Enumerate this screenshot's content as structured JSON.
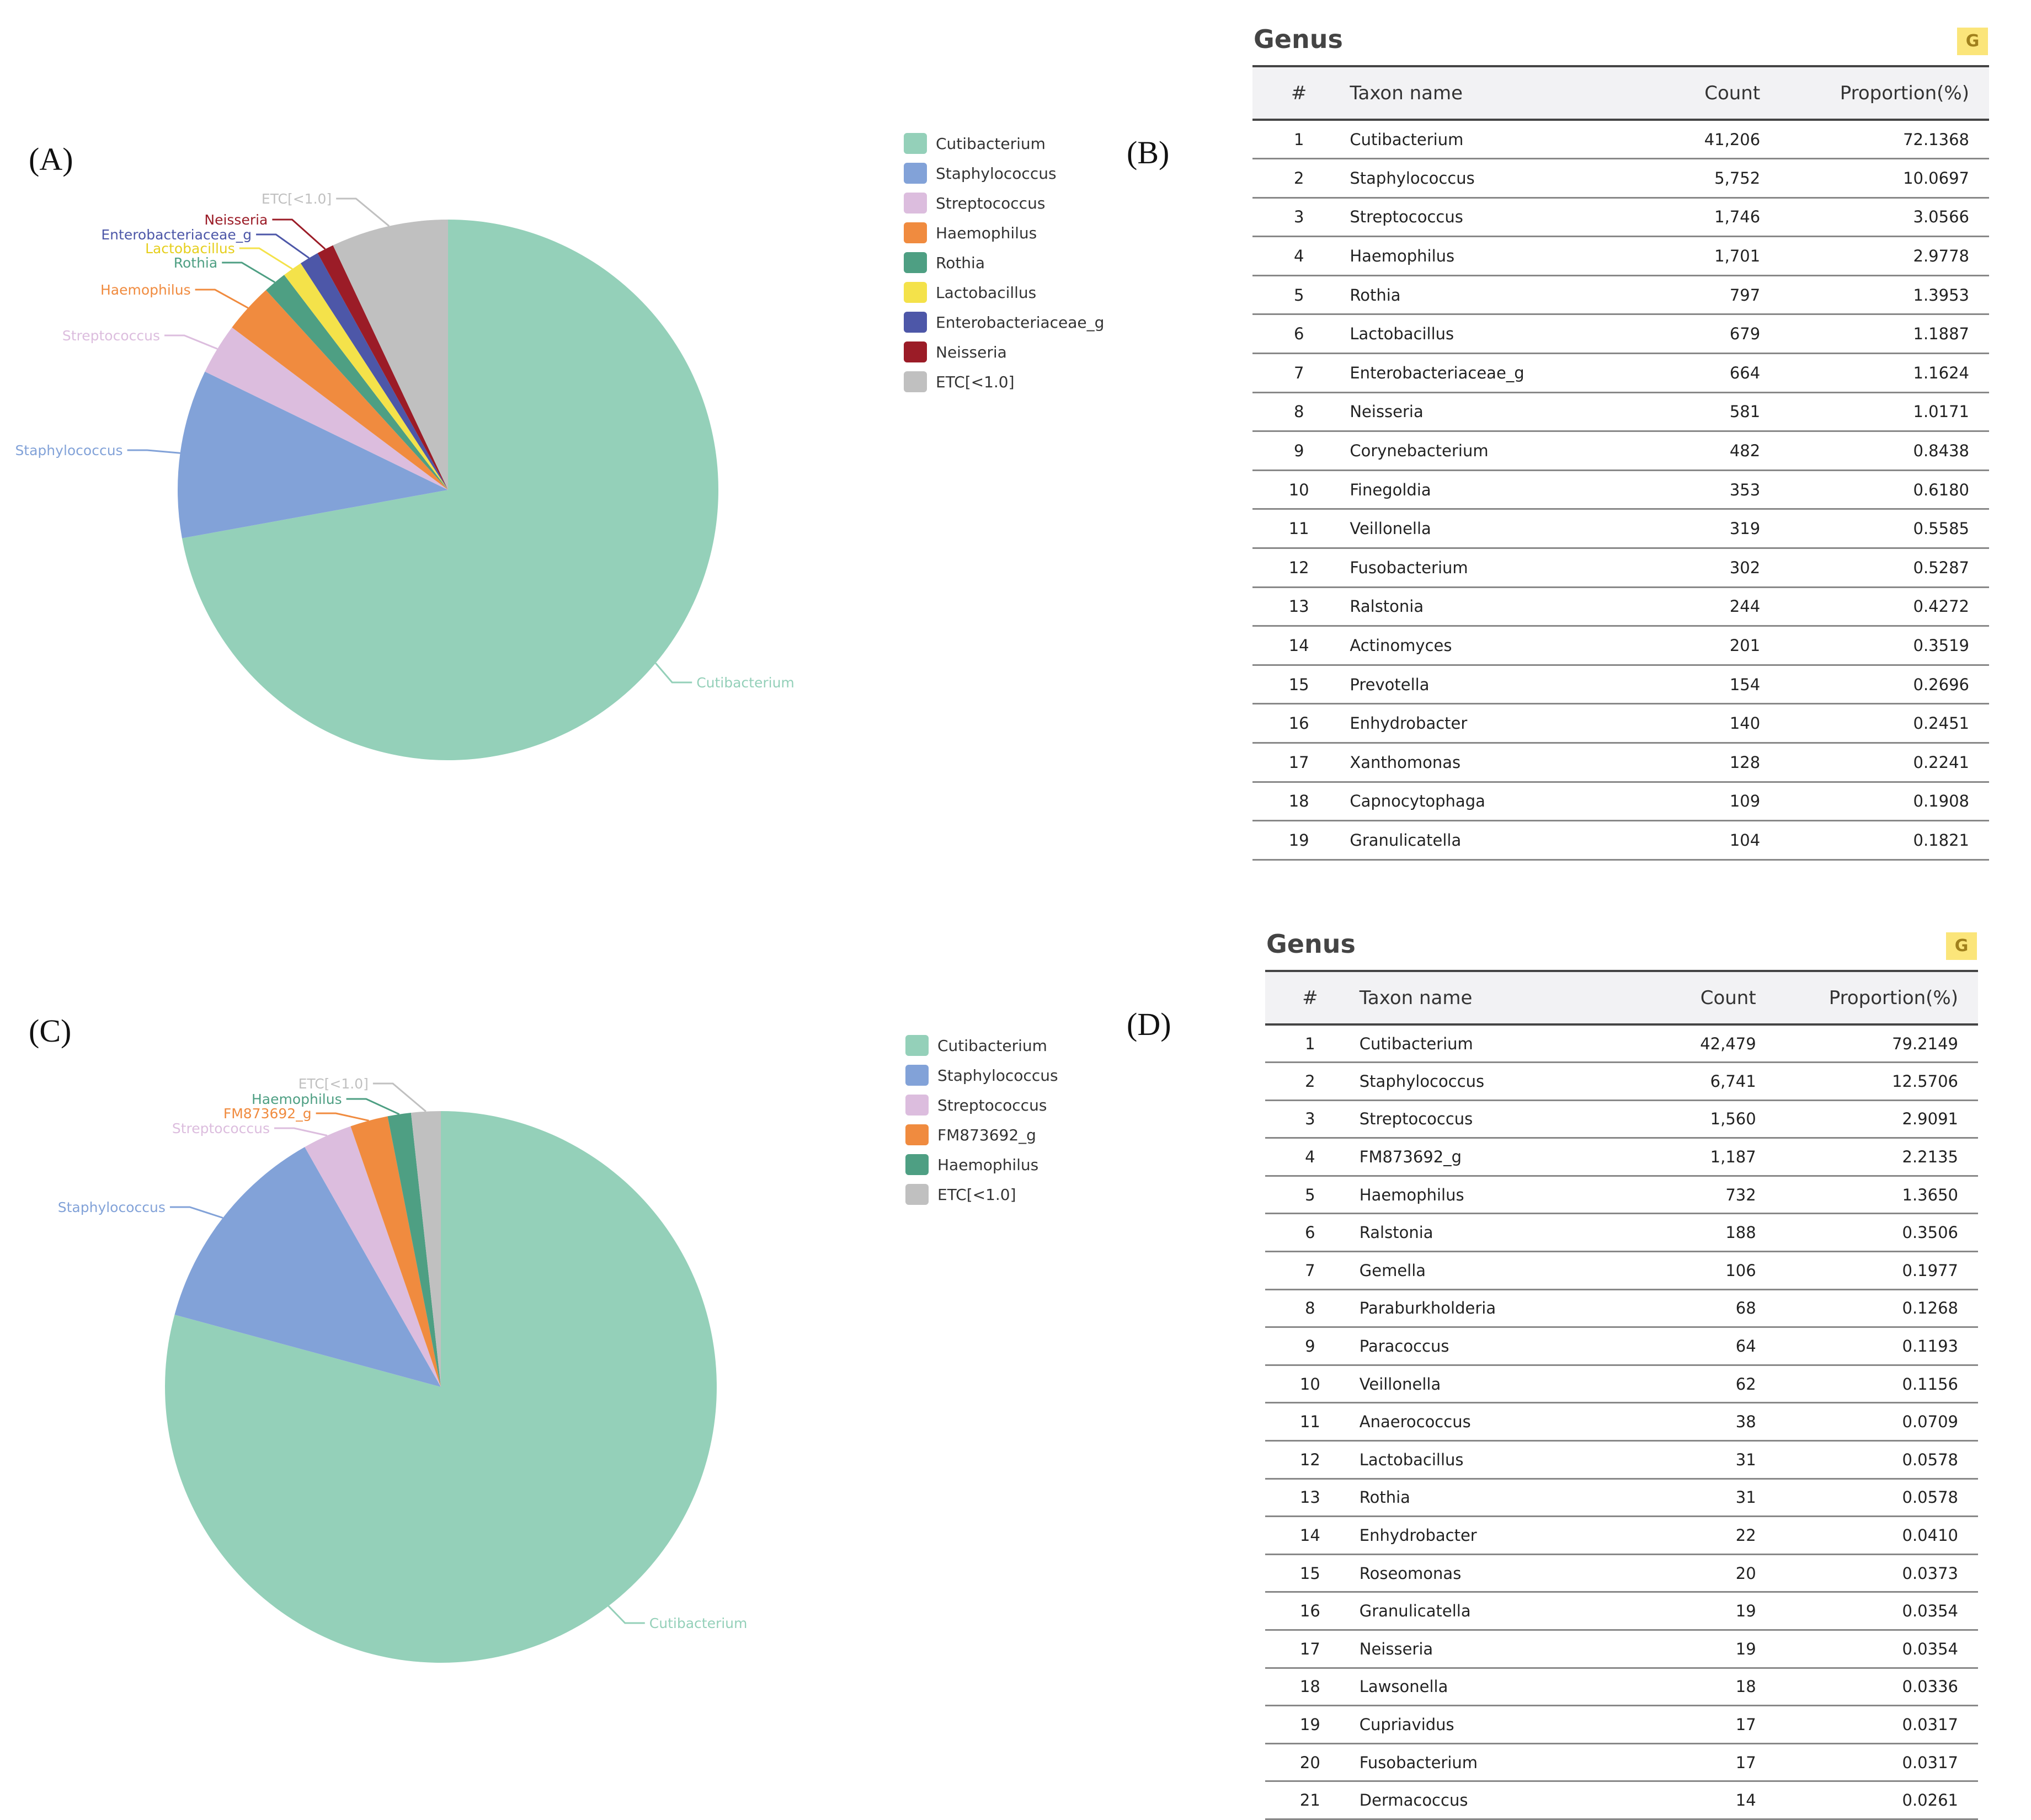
{
  "panels": {
    "a": "(A)",
    "b": "(B)",
    "c": "(C)",
    "d": "(D)"
  },
  "chart_data": [
    {
      "type": "pie",
      "panel": "(A)",
      "slices": [
        {
          "label": "Cutibacterium",
          "value": 72.1368,
          "color": "#94d0b9"
        },
        {
          "label": "Staphylococcus",
          "value": 10.0697,
          "color": "#82a2d8"
        },
        {
          "label": "Streptococcus",
          "value": 3.0566,
          "color": "#dcbdde"
        },
        {
          "label": "Haemophilus",
          "value": 2.9778,
          "color": "#f08b3f"
        },
        {
          "label": "Rothia",
          "value": 1.3953,
          "color": "#4e9f83"
        },
        {
          "label": "Lactobacillus",
          "value": 1.1887,
          "color": "#f4e24a"
        },
        {
          "label": "Enterobacteriaceae_g",
          "value": 1.1624,
          "color": "#4d57a8"
        },
        {
          "label": "Neisseria",
          "value": 1.0171,
          "color": "#9b1c27"
        },
        {
          "label": "ETC[<1.0]",
          "value": 6.9956,
          "color": "#c0c0c0"
        }
      ],
      "legend": "right"
    },
    {
      "type": "pie",
      "panel": "(C)",
      "slices": [
        {
          "label": "Cutibacterium",
          "value": 79.2149,
          "color": "#94d0b9"
        },
        {
          "label": "Staphylococcus",
          "value": 12.5706,
          "color": "#82a2d8"
        },
        {
          "label": "Streptococcus",
          "value": 2.9091,
          "color": "#dcbdde"
        },
        {
          "label": "FM873692_g",
          "value": 2.2135,
          "color": "#f08b3f"
        },
        {
          "label": "Haemophilus",
          "value": 1.365,
          "color": "#4e9f83"
        },
        {
          "label": "ETC[<1.0]",
          "value": 1.7269,
          "color": "#c0c0c0"
        }
      ],
      "legend": "right"
    },
    {
      "type": "table",
      "panel": "(B)",
      "title": "Genus",
      "badge": "G",
      "columns": [
        "#",
        "Taxon name",
        "Count",
        "Proportion(%)"
      ],
      "rows": [
        [
          "1",
          "Cutibacterium",
          "41,206",
          "72.1368"
        ],
        [
          "2",
          "Staphylococcus",
          "5,752",
          "10.0697"
        ],
        [
          "3",
          "Streptococcus",
          "1,746",
          "3.0566"
        ],
        [
          "4",
          "Haemophilus",
          "1,701",
          "2.9778"
        ],
        [
          "5",
          "Rothia",
          "797",
          "1.3953"
        ],
        [
          "6",
          "Lactobacillus",
          "679",
          "1.1887"
        ],
        [
          "7",
          "Enterobacteriaceae_g",
          "664",
          "1.1624"
        ],
        [
          "8",
          "Neisseria",
          "581",
          "1.0171"
        ],
        [
          "9",
          "Corynebacterium",
          "482",
          "0.8438"
        ],
        [
          "10",
          "Finegoldia",
          "353",
          "0.6180"
        ],
        [
          "11",
          "Veillonella",
          "319",
          "0.5585"
        ],
        [
          "12",
          "Fusobacterium",
          "302",
          "0.5287"
        ],
        [
          "13",
          "Ralstonia",
          "244",
          "0.4272"
        ],
        [
          "14",
          "Actinomyces",
          "201",
          "0.3519"
        ],
        [
          "15",
          "Prevotella",
          "154",
          "0.2696"
        ],
        [
          "16",
          "Enhydrobacter",
          "140",
          "0.2451"
        ],
        [
          "17",
          "Xanthomonas",
          "128",
          "0.2241"
        ],
        [
          "18",
          "Capnocytophaga",
          "109",
          "0.1908"
        ],
        [
          "19",
          "Granulicatella",
          "104",
          "0.1821"
        ]
      ]
    },
    {
      "type": "table",
      "panel": "(D)",
      "title": "Genus",
      "badge": "G",
      "columns": [
        "#",
        "Taxon name",
        "Count",
        "Proportion(%)"
      ],
      "rows": [
        [
          "1",
          "Cutibacterium",
          "42,479",
          "79.2149"
        ],
        [
          "2",
          "Staphylococcus",
          "6,741",
          "12.5706"
        ],
        [
          "3",
          "Streptococcus",
          "1,560",
          "2.9091"
        ],
        [
          "4",
          "FM873692_g",
          "1,187",
          "2.2135"
        ],
        [
          "5",
          "Haemophilus",
          "732",
          "1.3650"
        ],
        [
          "6",
          "Ralstonia",
          "188",
          "0.3506"
        ],
        [
          "7",
          "Gemella",
          "106",
          "0.1977"
        ],
        [
          "8",
          "Paraburkholderia",
          "68",
          "0.1268"
        ],
        [
          "9",
          "Paracoccus",
          "64",
          "0.1193"
        ],
        [
          "10",
          "Veillonella",
          "62",
          "0.1156"
        ],
        [
          "11",
          "Anaerococcus",
          "38",
          "0.0709"
        ],
        [
          "12",
          "Lactobacillus",
          "31",
          "0.0578"
        ],
        [
          "13",
          "Rothia",
          "31",
          "0.0578"
        ],
        [
          "14",
          "Enhydrobacter",
          "22",
          "0.0410"
        ],
        [
          "15",
          "Roseomonas",
          "20",
          "0.0373"
        ],
        [
          "16",
          "Granulicatella",
          "19",
          "0.0354"
        ],
        [
          "17",
          "Neisseria",
          "19",
          "0.0354"
        ],
        [
          "18",
          "Lawsonella",
          "18",
          "0.0336"
        ],
        [
          "19",
          "Cupriavidus",
          "17",
          "0.0317"
        ],
        [
          "20",
          "Fusobacterium",
          "17",
          "0.0317"
        ],
        [
          "21",
          "Dermacoccus",
          "14",
          "0.0261"
        ]
      ]
    }
  ]
}
